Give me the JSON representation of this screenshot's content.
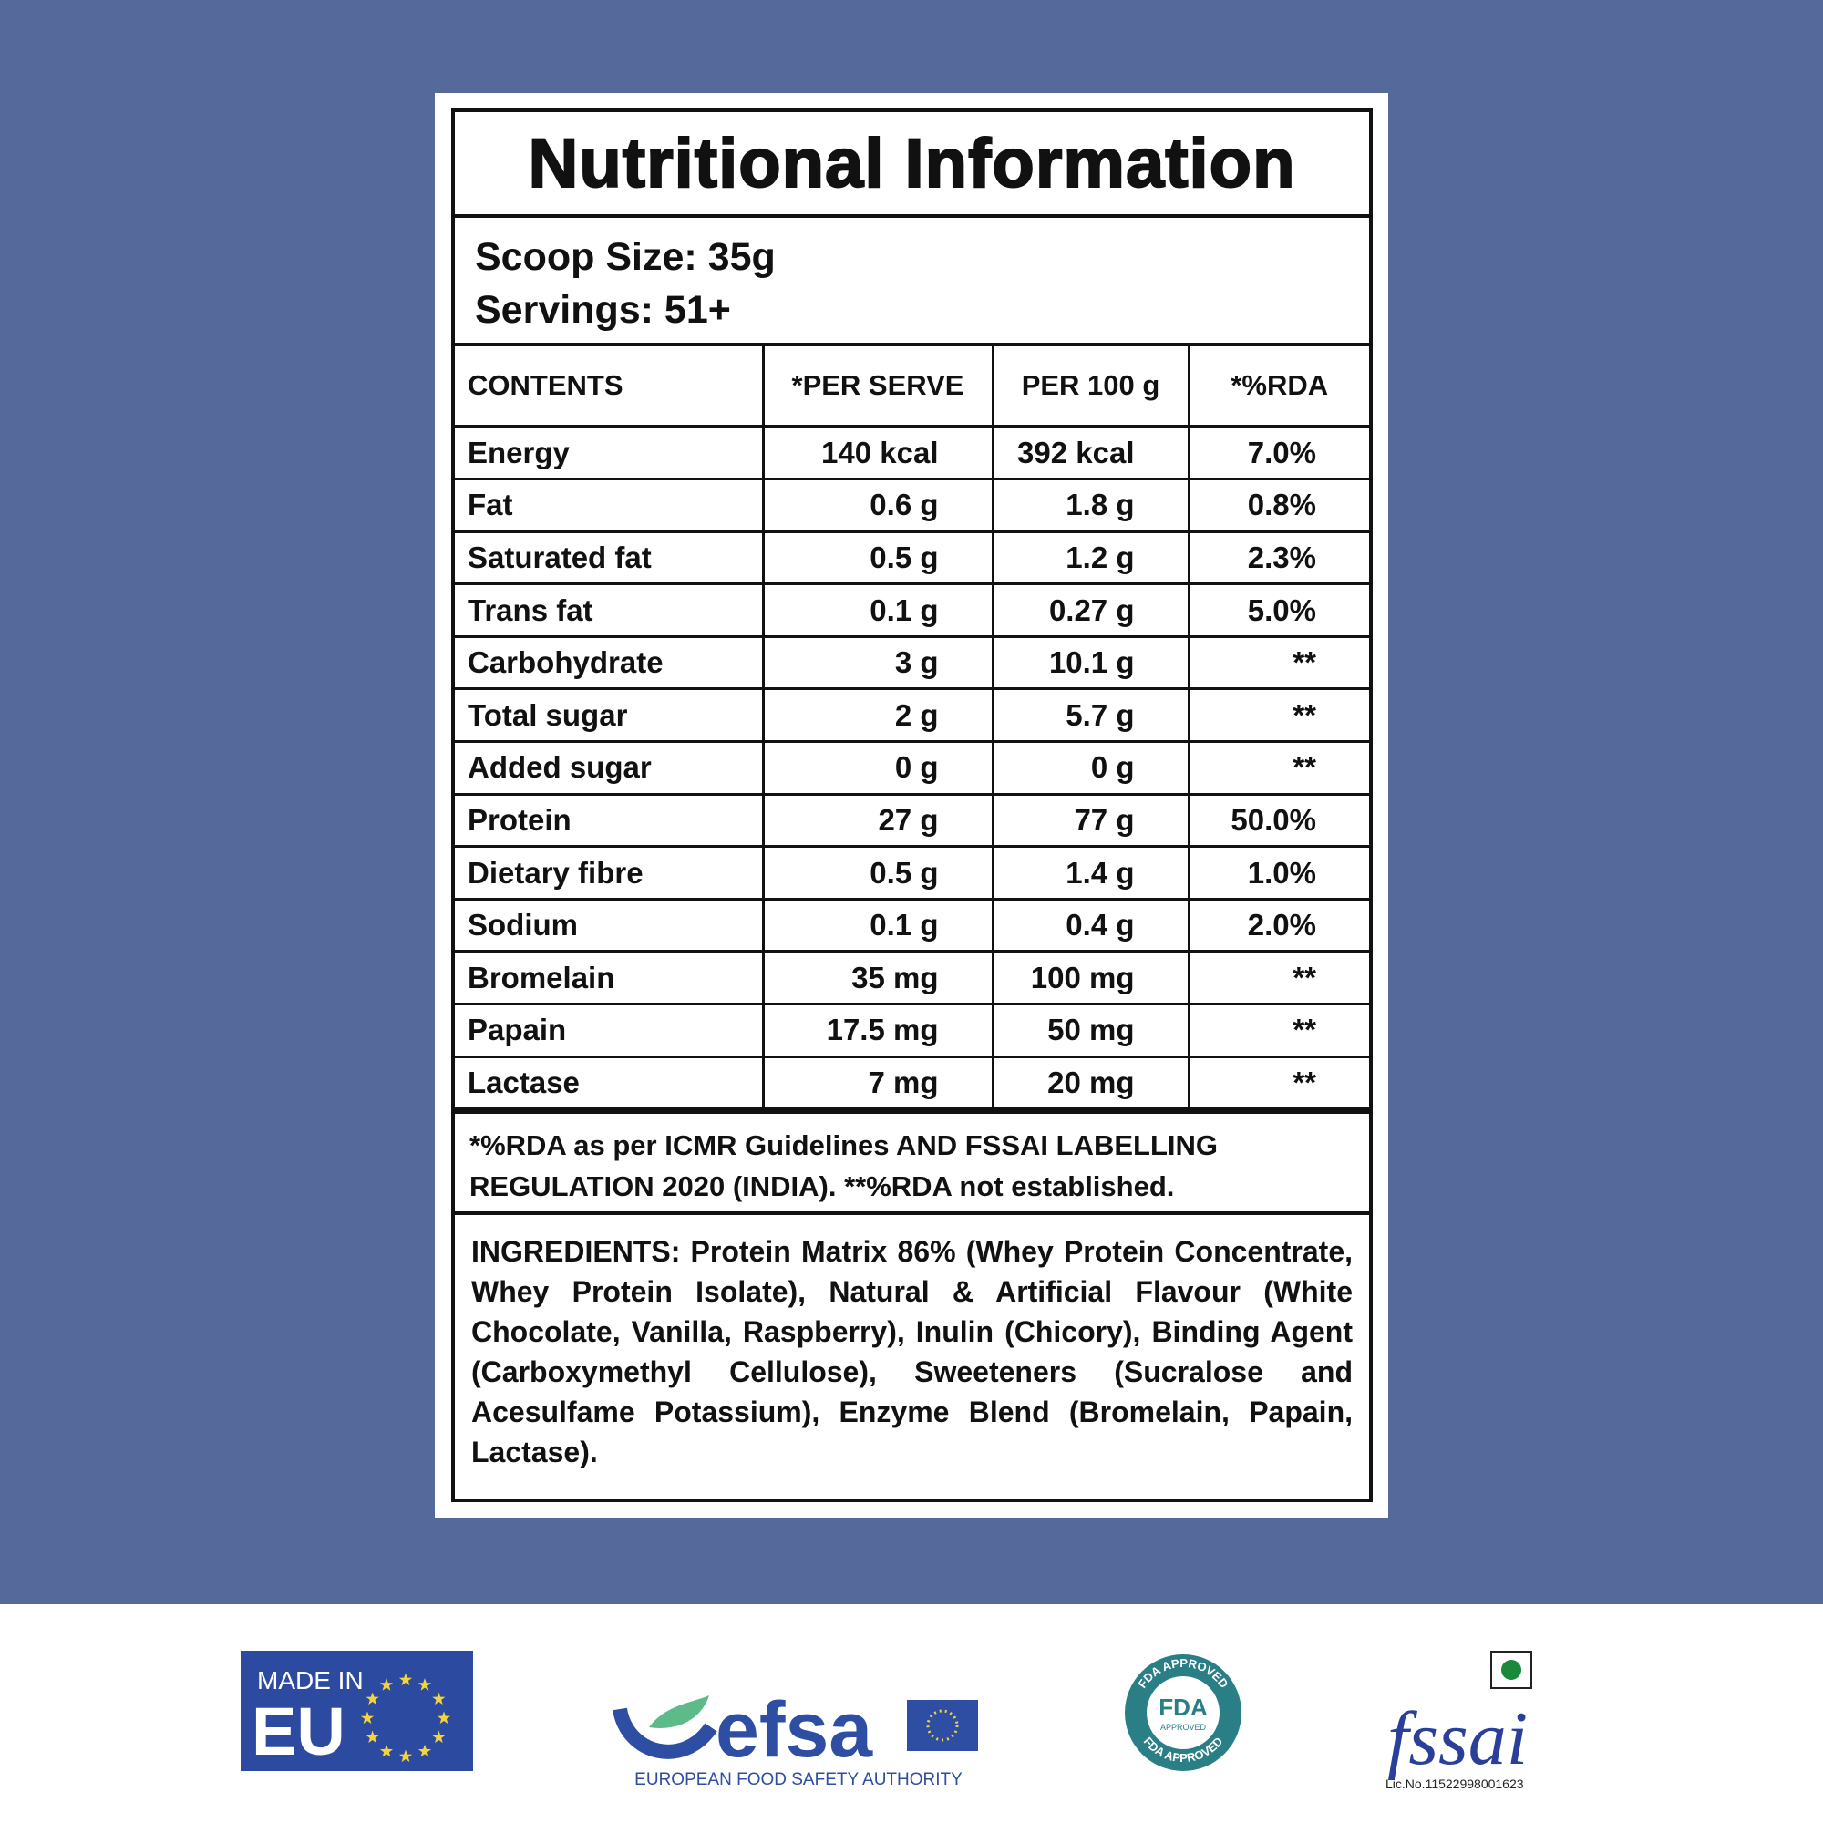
{
  "header": {
    "title": "Nutritional Information"
  },
  "serving": {
    "scoop_size": "Scoop Size: 35g",
    "servings": "Servings: 51+"
  },
  "table": {
    "columns": [
      "CONTENTS",
      "*PER SERVE",
      "PER 100 g",
      "*%RDA"
    ],
    "rows": [
      [
        "Energy",
        "140 kcal",
        "392 kcal",
        "7.0%"
      ],
      [
        "Fat",
        "0.6 g",
        "1.8 g",
        "0.8%"
      ],
      [
        "Saturated fat",
        "0.5 g",
        "1.2 g",
        "2.3%"
      ],
      [
        "Trans fat",
        "0.1 g",
        "0.27 g",
        "5.0%"
      ],
      [
        "Carbohydrate",
        "3 g",
        "10.1 g",
        "**"
      ],
      [
        "Total sugar",
        "2 g",
        "5.7 g",
        "**"
      ],
      [
        "Added sugar",
        "0 g",
        "0 g",
        "**"
      ],
      [
        "Protein",
        "27 g",
        "77 g",
        "50.0%"
      ],
      [
        "Dietary fibre",
        "0.5 g",
        "1.4 g",
        "1.0%"
      ],
      [
        "Sodium",
        "0.1 g",
        "0.4 g",
        "2.0%"
      ],
      [
        "Bromelain",
        "35 mg",
        "100 mg",
        "**"
      ],
      [
        "Papain",
        "17.5 mg",
        "50 mg",
        "**"
      ],
      [
        "Lactase",
        "7 mg",
        "20 mg",
        "**"
      ]
    ]
  },
  "footnote": [
    "*%RDA as per ICMR Guidelines AND FSSAI LABELLING",
    "REGULATION 2020 (INDIA). **%RDA not established."
  ],
  "ingredients": "INGREDIENTS: Protein Matrix 86% (Whey Protein Concentrate, Whey Protein Isolate), Natural & Artificial Flavour (White Chocolate, Vanilla, Raspberry), Inulin (Chicory), Binding Agent (Carboxymethyl Cellulose), Sweeteners (Sucralose and Acesulfame Potassium), Enzyme Blend (Bromelain, Papain, Lactase).",
  "logos": {
    "eu": {
      "line1": "MADE IN",
      "line2": "EU"
    },
    "efsa": {
      "name": "efsa",
      "caption": "EUROPEAN FOOD SAFETY AUTHORITY"
    },
    "fda": {
      "top": "FDA APPROVED",
      "bottom": "FDA APPROVED",
      "mark": "FDA",
      "sub": "APPROVED"
    },
    "fssai": {
      "name": "fssai",
      "license": "Lic.No.11522998001623"
    }
  }
}
